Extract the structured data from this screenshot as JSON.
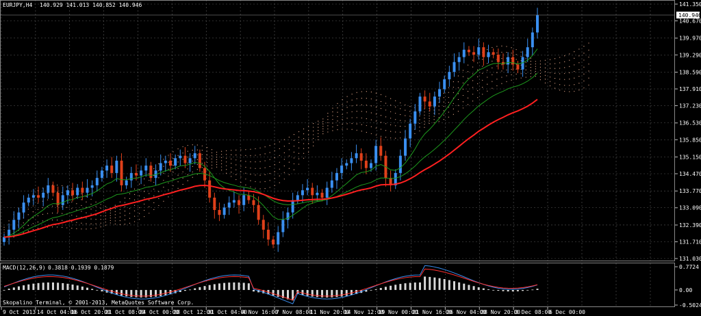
{
  "main_header": {
    "symbol_tf": "EURJPY,H4",
    "ohlc": "140.929 141.013 140.852 140.946"
  },
  "macd_header": {
    "label": "MACD(12,26,9)",
    "values": "0.3818 0.1939 0.1879"
  },
  "copyright": "Skopalino Terminal, © 2001-2013, MetaQuotes Software Corp.",
  "current_price": "140.946",
  "colors": {
    "background": "#000000",
    "grid": "#5a5a5a",
    "bull_candle": "#3a8ff0",
    "bear_candle": "#e0401a",
    "ma_red": "#ff2020",
    "ma_green": "#1e9a1e",
    "cloud": "#f0b090",
    "macd_hist": "#d8d8d8",
    "macd_main": "#3a8ff0",
    "macd_signal": "#ff3030",
    "signal_arrow_up": "#20ff20",
    "signal_arrow_down": "#ff3030"
  },
  "chart_data": [
    {
      "type": "candlestick",
      "title": "EURJPY,H4",
      "y_axis_ticks": [
        "141.350",
        "140.670",
        "139.970",
        "139.290",
        "138.590",
        "137.910",
        "137.230",
        "136.530",
        "135.850",
        "135.150",
        "134.470",
        "133.770",
        "133.090",
        "132.390",
        "131.710",
        "131.030"
      ],
      "ylim": [
        131.03,
        141.35
      ],
      "x_axis_ticks": [
        "9 Oct 2013",
        "14 Oct 04:00",
        "16 Oct 20:00",
        "21 Oct 08:00",
        "24 Oct 00:00",
        "28 Oct 12:00",
        "31 Oct 04:00",
        "4 Nov 16:00",
        "7 Nov 08:00",
        "11 Nov 20:00",
        "14 Nov 12:00",
        "19 Nov 00:00",
        "21 Nov 16:00",
        "26 Nov 04:00",
        "28 Nov 20:00",
        "3 Dec 08:00",
        "6 Dec 00:00"
      ],
      "close_series": [
        131.9,
        132.2,
        132.6,
        132.9,
        133.3,
        133.5,
        133.6,
        133.5,
        133.7,
        134.0,
        133.7,
        133.2,
        133.6,
        133.8,
        133.6,
        133.9,
        133.7,
        133.9,
        134.0,
        134.3,
        134.6,
        134.8,
        134.5,
        135.0,
        134.0,
        134.2,
        134.5,
        134.4,
        134.6,
        134.8,
        134.3,
        134.6,
        134.9,
        135.0,
        134.8,
        135.1,
        135.2,
        134.9,
        135.1,
        135.3,
        134.7,
        134.2,
        133.5,
        133.0,
        132.8,
        133.1,
        133.3,
        133.4,
        133.2,
        133.6,
        133.4,
        133.2,
        132.6,
        132.2,
        131.8,
        131.6,
        132.1,
        132.6,
        132.9,
        133.4,
        133.6,
        133.8,
        133.9,
        133.6,
        133.7,
        133.5,
        133.9,
        134.2,
        134.5,
        134.8,
        134.9,
        135.1,
        135.3,
        135.0,
        134.7,
        134.9,
        135.6,
        135.2,
        134.3,
        134.0,
        134.5,
        135.2,
        135.9,
        136.5,
        137.0,
        137.6,
        137.4,
        137.2,
        137.6,
        137.9,
        138.3,
        138.6,
        139.0,
        139.2,
        139.5,
        139.4,
        139.3,
        139.6,
        139.2,
        139.4,
        139.3,
        139.0,
        138.9,
        139.2,
        138.9,
        138.7,
        139.2,
        139.6,
        140.2,
        140.9
      ],
      "ma_red_endpoints": [
        132.5,
        137.5
      ],
      "ma_green_endpoints": [
        132.3,
        139.0
      ]
    },
    {
      "type": "bar",
      "title": "MACD(12,26,9)",
      "y_axis_ticks": [
        "0.7724",
        "0.00",
        "-0.5024"
      ],
      "ylim": [
        -0.5024,
        0.7724
      ]
    }
  ]
}
